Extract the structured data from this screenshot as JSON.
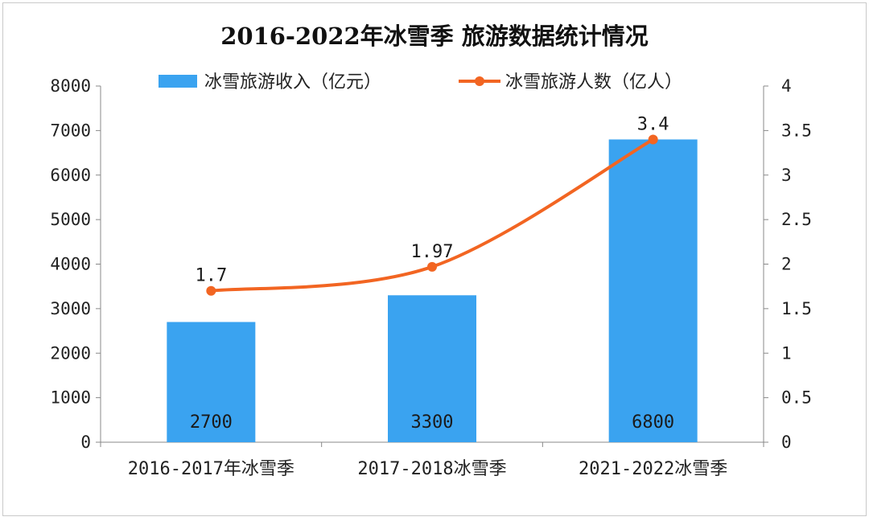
{
  "chart_data": {
    "type": "bar",
    "title": "2016-2022年冰雪季 旅游数据统计情况",
    "categories": [
      "2016-2017年冰雪季",
      "2017-2018冰雪季",
      "2021-2022冰雪季"
    ],
    "series": [
      {
        "name": "冰雪旅游收入（亿元）",
        "type": "bar",
        "axis": "left",
        "color": "#3aa3f0",
        "values": [
          2700,
          3300,
          6800
        ],
        "labels": [
          "2700",
          "3300",
          "6800"
        ]
      },
      {
        "name": "冰雪旅游人数（亿人）",
        "type": "line",
        "axis": "right",
        "color": "#f26522",
        "values": [
          1.7,
          1.97,
          3.4
        ],
        "labels": [
          "1.7",
          "1.97",
          "3.4"
        ]
      }
    ],
    "left_axis": {
      "ylim": [
        0,
        8000
      ],
      "ticks": [
        "0",
        "1000",
        "2000",
        "3000",
        "4000",
        "5000",
        "6000",
        "7000",
        "8000"
      ]
    },
    "right_axis": {
      "ylim": [
        0,
        4
      ],
      "ticks": [
        "0",
        "0.5",
        "1",
        "1.5",
        "2",
        "2.5",
        "3",
        "3.5",
        "4"
      ]
    },
    "legend_position": "top",
    "grid": false
  }
}
